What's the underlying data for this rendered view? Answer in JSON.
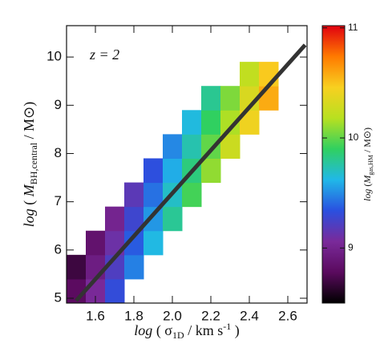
{
  "chart_data": {
    "type": "heatmap",
    "annotation": "z = 2",
    "ylabel": [
      "log",
      " ( ",
      "M",
      "BH,central",
      " / M⊙)"
    ],
    "xlabel": [
      "log",
      " ( σ",
      "1D",
      " / km s",
      "-1",
      " )"
    ],
    "colorbar_label": [
      "log",
      " (",
      "M",
      "gas,HM",
      " / M⊙)"
    ],
    "xlim": [
      1.45,
      2.7
    ],
    "ylim": [
      4.9,
      10.65
    ],
    "xticks": [
      1.6,
      1.8,
      {
        "value": 2,
        "label": "2.0"
      },
      2.2,
      2.4,
      2.6
    ],
    "yticks": [
      5,
      6,
      7,
      8,
      9,
      10
    ],
    "xbins": [
      1.45,
      1.55,
      1.65,
      1.75,
      1.85,
      1.95,
      2.05,
      2.15,
      2.25,
      2.35,
      2.45,
      2.55,
      2.65
    ],
    "ybins": [
      4.9,
      5.4,
      5.9,
      6.4,
      6.9,
      7.4,
      7.9,
      8.4,
      8.9,
      9.4,
      9.9
    ],
    "z": [
      [
        8.79,
        9.05,
        9.31,
        null,
        null,
        null,
        null,
        null,
        null,
        null,
        null,
        null
      ],
      [
        8.69,
        8.95,
        9.21,
        9.47,
        null,
        null,
        null,
        null,
        null,
        null,
        null,
        null
      ],
      [
        null,
        8.85,
        9.11,
        9.37,
        9.63,
        null,
        null,
        null,
        null,
        null,
        null,
        null
      ],
      [
        null,
        null,
        9.01,
        9.27,
        9.53,
        9.79,
        null,
        null,
        null,
        null,
        null,
        null
      ],
      [
        null,
        null,
        null,
        9.17,
        9.43,
        9.69,
        9.94,
        null,
        null,
        null,
        null,
        null
      ],
      [
        null,
        null,
        null,
        null,
        9.33,
        9.59,
        9.84,
        10.1,
        null,
        null,
        null,
        null
      ],
      [
        null,
        null,
        null,
        null,
        null,
        9.49,
        9.74,
        10.0,
        10.26,
        null,
        null,
        null
      ],
      [
        null,
        null,
        null,
        null,
        null,
        null,
        9.64,
        9.9,
        10.16,
        10.42,
        null,
        null
      ],
      [
        null,
        null,
        null,
        null,
        null,
        null,
        null,
        9.8,
        10.06,
        10.32,
        10.58,
        null
      ],
      [
        null,
        null,
        null,
        null,
        null,
        null,
        null,
        null,
        null,
        10.22,
        10.48,
        null
      ]
    ],
    "clim": [
      8.5,
      11.02
    ],
    "cticks": [
      9,
      10,
      11
    ],
    "colormap": [
      "#000000",
      "#5a0a5e",
      "#7a2a9a",
      "#2a50e0",
      "#20b8e8",
      "#30d060",
      "#b8e020",
      "#f8d020",
      "#ff7a00",
      "#e00010"
    ],
    "fit_line": {
      "x": [
        1.5,
        2.69
      ],
      "y": [
        4.95,
        10.25
      ],
      "color": "#333333"
    }
  }
}
